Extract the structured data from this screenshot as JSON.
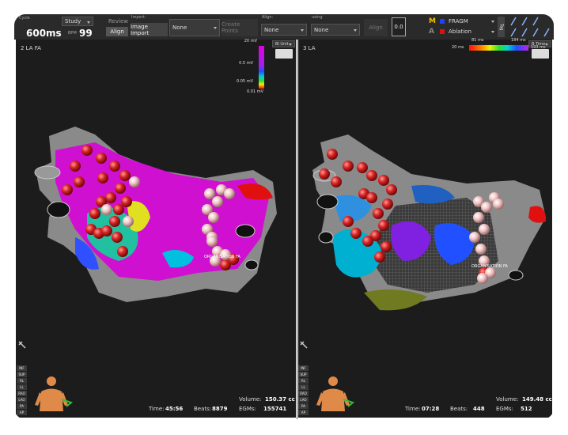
{
  "toolbar": {
    "cycle_label": "Cycle",
    "cycle_value": "600ms",
    "study": "Study",
    "bpm_label": "BPM",
    "bpm_value": "99",
    "review": "Review",
    "align": "Align",
    "import_label": "Import:",
    "image_import": "Image Import",
    "import_select": "None",
    "create_points": "Create Points",
    "align_label": "Align:",
    "align_select": "None",
    "using_label": "using",
    "using_select": "None",
    "align_button": "Align",
    "align_value": "0.0",
    "tags": [
      {
        "key": "M",
        "name": "FRAGM"
      },
      {
        "key": "A",
        "name": "Ablation"
      }
    ],
    "tag_button": "Tag"
  },
  "maps": [
    {
      "title": "2 LA FA",
      "map_type": "Bi Unit",
      "scale_labels": [
        "20 mV",
        "0.5 mV",
        "0.05 mV",
        "0.01 mV"
      ],
      "annotation": "ORGANISATION FA",
      "volume_label": "Volume:",
      "volume": "150.37 cc",
      "time_label": "Time:",
      "time": "45:56",
      "beats_label": "Beats:",
      "beats": "8879",
      "egms_label": "EGMs:",
      "egms": "155741"
    },
    {
      "title": "3 LA",
      "map_type": "B Time",
      "scale_labels": [
        "81 ms",
        "184 ms",
        "20 ms",
        "193 ms"
      ],
      "annotation": "ORGANISATION FA",
      "volume_label": "Volume:",
      "volume": "149.48 cc",
      "time_label": "Time:",
      "time": "07:28",
      "beats_label": "Beats:",
      "beats": "448",
      "egms_label": "EGMs:",
      "egms": "512"
    }
  ],
  "view_buttons": [
    "INF",
    "SUP",
    "RL",
    "LL",
    "RAO",
    "LAO",
    "PA",
    "AP"
  ]
}
